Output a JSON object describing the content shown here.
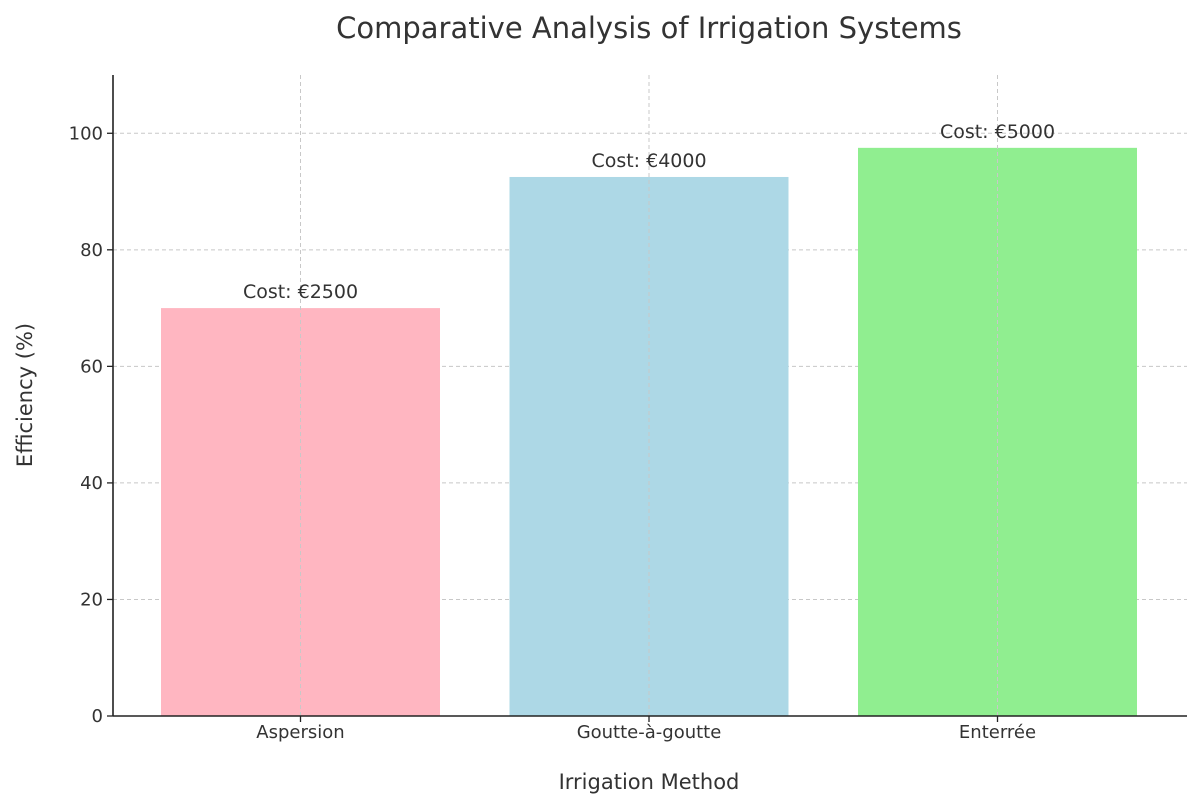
{
  "chart_data": {
    "type": "bar",
    "title": "Comparative Analysis of Irrigation Systems",
    "xlabel": "Irrigation Method",
    "ylabel": "Efficiency (%)",
    "categories": [
      "Aspersion",
      "Goutte-à-goutte",
      "Enterrée"
    ],
    "values": [
      70,
      92.5,
      97.5
    ],
    "bar_labels": [
      "Cost: €2500",
      "Cost: €4000",
      "Cost: €5000"
    ],
    "colors": [
      "#ffb6c1",
      "#add8e6",
      "#90ee90"
    ],
    "ylim": [
      0,
      110
    ],
    "yticks": [
      0,
      20,
      40,
      60,
      80,
      100
    ],
    "grid": true
  }
}
